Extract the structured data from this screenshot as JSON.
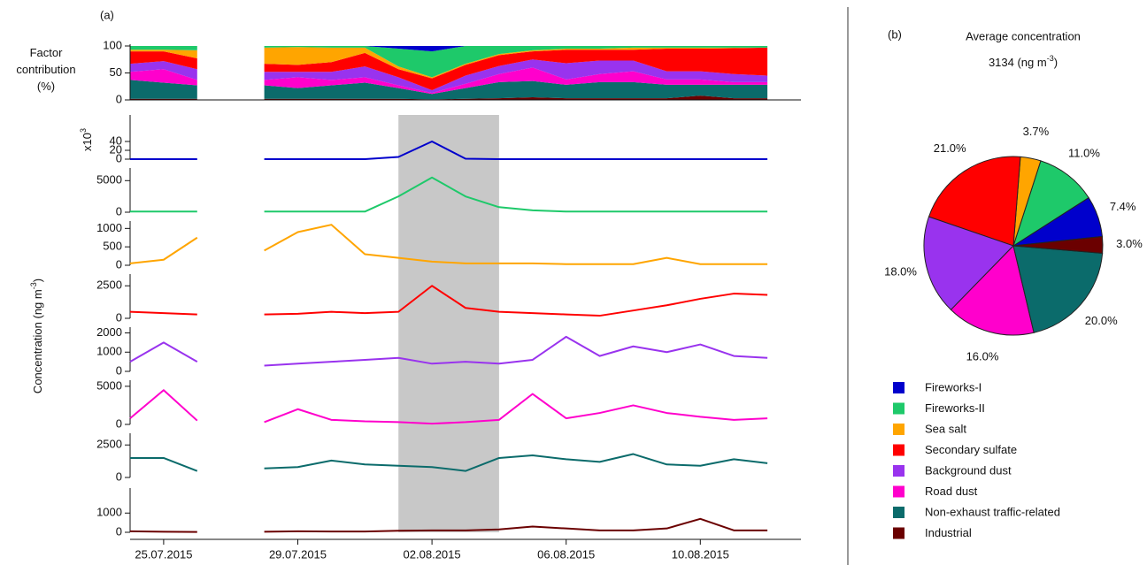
{
  "chart_data": [
    {
      "type": "area",
      "label": "(a)",
      "ylabel": "Factor contribution (%)",
      "x": [
        "24.07.2015",
        "25.07.2015",
        "26.07.2015",
        "27.07.2015",
        "28.07.2015",
        "29.07.2015",
        "30.07.2015",
        "31.07.2015",
        "01.08.2015",
        "02.08.2015",
        "03.08.2015",
        "04.08.2015",
        "05.08.2015",
        "06.08.2015",
        "07.08.2015",
        "08.08.2015",
        "09.08.2015",
        "10.08.2015",
        "11.08.2015",
        "12.08.2015"
      ],
      "xlim": [
        "24.07.2015",
        "13.08.2015"
      ],
      "ylim": [
        0,
        100
      ],
      "yticks": [
        0,
        50,
        100
      ],
      "series": [
        {
          "color": "#6b0000",
          "values": [
            2,
            2,
            2,
            null,
            2,
            2,
            2,
            2,
            2,
            1,
            2,
            3,
            5,
            3,
            3,
            3,
            3,
            8,
            3,
            3
          ]
        },
        {
          "color": "#0b6b6b",
          "values": [
            35,
            30,
            25,
            null,
            25,
            20,
            25,
            30,
            20,
            10,
            20,
            30,
            30,
            25,
            30,
            30,
            25,
            20,
            25,
            25
          ]
        },
        {
          "color": "#ff00cc",
          "values": [
            15,
            25,
            10,
            null,
            10,
            20,
            10,
            10,
            5,
            2,
            8,
            15,
            25,
            10,
            15,
            20,
            10,
            10,
            5,
            5
          ]
        },
        {
          "color": "#9933ee",
          "values": [
            15,
            15,
            20,
            null,
            15,
            10,
            15,
            20,
            15,
            5,
            15,
            15,
            15,
            30,
            25,
            20,
            15,
            15,
            15,
            12
          ]
        },
        {
          "color": "#ff0000",
          "values": [
            23,
            18,
            20,
            null,
            15,
            13,
            18,
            25,
            15,
            22,
            20,
            20,
            15,
            25,
            20,
            20,
            42,
            42,
            48,
            52
          ]
        },
        {
          "color": "#ffa500",
          "values": [
            3,
            3,
            15,
            null,
            30,
            33,
            27,
            10,
            5,
            2,
            2,
            2,
            2,
            2,
            2,
            4,
            2,
            2,
            1,
            0
          ]
        },
        {
          "color": "#1ec96a",
          "values": [
            7,
            7,
            8,
            null,
            3,
            2,
            3,
            3,
            33,
            48,
            33,
            15,
            8,
            5,
            5,
            3,
            3,
            3,
            3,
            3
          ]
        },
        {
          "color": "#0000cc",
          "values": [
            0,
            0,
            0,
            null,
            0,
            0,
            0,
            0,
            5,
            10,
            0,
            0,
            0,
            0,
            0,
            0,
            0,
            0,
            0,
            0
          ]
        }
      ]
    },
    {
      "type": "line",
      "ylabel": [
        "Concentration (ng m",
        "-3",
        ")"
      ],
      "x": [
        "24.07.2015",
        "25.07.2015",
        "26.07.2015",
        "27.07.2015",
        "28.07.2015",
        "29.07.2015",
        "30.07.2015",
        "31.07.2015",
        "01.08.2015",
        "02.08.2015",
        "03.08.2015",
        "04.08.2015",
        "05.08.2015",
        "06.08.2015",
        "07.08.2015",
        "08.08.2015",
        "09.08.2015",
        "10.08.2015",
        "11.08.2015",
        "12.08.2015"
      ],
      "xlim": [
        "24.07.2015",
        "13.08.2015"
      ],
      "xticks": [
        "25.07.2015",
        "29.07.2015",
        "02.08.2015",
        "06.08.2015",
        "10.08.2015"
      ],
      "shade": [
        "01.08.2015",
        "04.08.2015"
      ],
      "panels": [
        {
          "color": "#0000cc",
          "ylabel": [
            "x10",
            "3"
          ],
          "ylim": [
            0,
            100
          ],
          "yticks": [
            0,
            20,
            40
          ],
          "values": [
            0,
            0,
            0,
            null,
            0,
            0,
            0,
            0,
            5,
            40,
            1,
            0,
            0,
            0,
            0,
            0,
            0,
            0,
            0,
            0
          ]
        },
        {
          "color": "#1ec96a",
          "ylim": [
            0,
            7000
          ],
          "yticks": [
            0,
            5000
          ],
          "values": [
            100,
            100,
            100,
            null,
            100,
            100,
            100,
            100,
            2500,
            5500,
            2500,
            800,
            300,
            100,
            100,
            100,
            100,
            100,
            100,
            100
          ]
        },
        {
          "color": "#ffa500",
          "ylim": [
            0,
            1200
          ],
          "yticks": [
            0,
            500,
            1000
          ],
          "values": [
            50,
            150,
            750,
            null,
            400,
            900,
            1100,
            300,
            200,
            100,
            50,
            50,
            50,
            30,
            30,
            30,
            200,
            30,
            30,
            30
          ]
        },
        {
          "color": "#ff0000",
          "ylim": [
            0,
            3400
          ],
          "yticks": [
            0,
            2500
          ],
          "values": [
            500,
            400,
            300,
            null,
            300,
            350,
            500,
            400,
            500,
            2500,
            800,
            500,
            400,
            300,
            200,
            600,
            1000,
            1500,
            1900,
            1800
          ]
        },
        {
          "color": "#9933ee",
          "ylim": [
            0,
            2300
          ],
          "yticks": [
            0,
            1000,
            2000
          ],
          "values": [
            500,
            1500,
            500,
            null,
            300,
            400,
            500,
            600,
            700,
            400,
            500,
            400,
            600,
            1800,
            800,
            1300,
            1000,
            1400,
            800,
            700
          ]
        },
        {
          "color": "#ff00cc",
          "ylim": [
            0,
            5800
          ],
          "yticks": [
            0,
            5000
          ],
          "values": [
            800,
            4500,
            500,
            null,
            300,
            2000,
            600,
            400,
            300,
            100,
            300,
            600,
            4000,
            800,
            1500,
            2500,
            1500,
            1000,
            600,
            800
          ]
        },
        {
          "color": "#0b6b6b",
          "ylim": [
            0,
            3400
          ],
          "yticks": [
            0,
            2500
          ],
          "values": [
            1500,
            1500,
            500,
            null,
            700,
            800,
            1300,
            1000,
            900,
            800,
            500,
            1500,
            1700,
            1400,
            1200,
            1800,
            1000,
            900,
            1400,
            1100
          ]
        },
        {
          "color": "#6b0000",
          "ylim": [
            0,
            2300
          ],
          "yticks": [
            0,
            1000
          ],
          "values": [
            50,
            30,
            20,
            null,
            30,
            50,
            40,
            40,
            80,
            100,
            100,
            150,
            300,
            200,
            100,
            100,
            200,
            700,
            100,
            100
          ]
        }
      ]
    },
    {
      "type": "pie",
      "label": "(b)",
      "title": "Average concentration",
      "subtitle": [
        "3134 (ng m",
        "-3",
        ")"
      ],
      "categories": [
        "Fireworks-I",
        "Fireworks-II",
        "Sea salt",
        "Secondary sulfate",
        "Background dust",
        "Road dust",
        "Non-exhaust traffic-related",
        "Industrial"
      ],
      "values": [
        7.4,
        11.0,
        3.7,
        21.0,
        18.0,
        16.0,
        20.0,
        3.0
      ],
      "value_labels": [
        "7.4%",
        "11.0%",
        "3.7%",
        "21.0%",
        "18.0%",
        "16.0%",
        "20.0%",
        "3.0%"
      ],
      "colors": [
        "#0000cc",
        "#1ec96a",
        "#ffa500",
        "#ff0000",
        "#9933ee",
        "#ff00cc",
        "#0b6b6b",
        "#6b0000"
      ]
    }
  ]
}
